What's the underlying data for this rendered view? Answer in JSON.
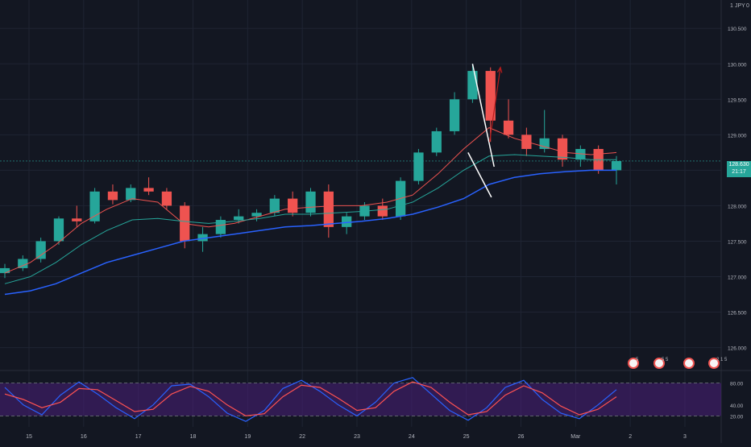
{
  "header": {
    "currency": "JPY",
    "scale_value": "1",
    "zero_label": "0"
  },
  "price_tag": {
    "price": "128.630",
    "countdown": "21:17",
    "color": "#26a69a"
  },
  "events": [
    {
      "label": "5",
      "date": "Mar 1"
    },
    {
      "label": "5 5",
      "date": "Mar 1"
    },
    {
      "label": "",
      "date": "Mar 2"
    },
    {
      "label": "2 1 5",
      "date": "Mar 3"
    }
  ],
  "colors": {
    "background": "#131722",
    "grid": "#1f2433",
    "up": "#26a69a",
    "down": "#ef5350",
    "ma_fast": "#ef5350",
    "ma_slow": "#26a69a",
    "ma_long": "#2962ff",
    "pattern": "#ffffff",
    "target_arrow": "#b71c1c",
    "stoch_k": "#2962ff",
    "stoch_d": "#ff5252",
    "stoch_band": "#4a1f7a"
  },
  "chart_data": [
    {
      "type": "candlestick",
      "title": "",
      "x_ticks": [
        "15",
        "16",
        "17",
        "18",
        "19",
        "22",
        "23",
        "24",
        "25",
        "26",
        "Mar",
        "2",
        "3"
      ],
      "y_ticks": [
        "126.000",
        "126.500",
        "127.000",
        "127.500",
        "128.000",
        "128.500",
        "129.000",
        "129.500",
        "130.000",
        "130.500"
      ],
      "ylim": [
        125.7,
        130.9
      ],
      "grid": true,
      "series": [
        {
          "name": "ma_fast",
          "values": [
            127.05,
            127.2,
            127.45,
            127.75,
            127.95,
            128.1,
            128.05,
            127.75,
            127.7,
            127.75,
            127.85,
            127.95,
            127.98,
            128.0,
            128.0,
            128.05,
            128.15,
            128.45,
            128.8,
            129.1,
            128.95,
            128.85,
            128.75,
            128.72,
            128.75
          ]
        },
        {
          "name": "ma_slow",
          "values": [
            126.9,
            127.0,
            127.2,
            127.45,
            127.65,
            127.8,
            127.82,
            127.78,
            127.75,
            127.78,
            127.82,
            127.88,
            127.88,
            127.9,
            127.92,
            127.95,
            128.05,
            128.25,
            128.5,
            128.7,
            128.72,
            128.7,
            128.68,
            128.65,
            128.65
          ]
        },
        {
          "name": "ma_long",
          "values": [
            126.75,
            126.8,
            126.9,
            127.05,
            127.2,
            127.3,
            127.4,
            127.5,
            127.55,
            127.6,
            127.65,
            127.7,
            127.72,
            127.75,
            127.78,
            127.82,
            127.88,
            127.98,
            128.1,
            128.3,
            128.4,
            128.45,
            128.48,
            128.5,
            128.5
          ]
        }
      ],
      "candles": [
        {
          "o": 127.05,
          "h": 127.18,
          "l": 126.98,
          "c": 127.12
        },
        {
          "o": 127.12,
          "h": 127.3,
          "l": 127.08,
          "c": 127.25
        },
        {
          "o": 127.25,
          "h": 127.55,
          "l": 127.2,
          "c": 127.5
        },
        {
          "o": 127.5,
          "h": 127.85,
          "l": 127.45,
          "c": 127.82
        },
        {
          "o": 127.82,
          "h": 128.0,
          "l": 127.7,
          "c": 127.78
        },
        {
          "o": 127.78,
          "h": 128.25,
          "l": 127.75,
          "c": 128.2
        },
        {
          "o": 128.2,
          "h": 128.3,
          "l": 128.02,
          "c": 128.08
        },
        {
          "o": 128.08,
          "h": 128.3,
          "l": 128.05,
          "c": 128.25
        },
        {
          "o": 128.25,
          "h": 128.4,
          "l": 128.15,
          "c": 128.2
        },
        {
          "o": 128.2,
          "h": 128.25,
          "l": 127.95,
          "c": 128.0
        },
        {
          "o": 128.0,
          "h": 128.05,
          "l": 127.4,
          "c": 127.5
        },
        {
          "o": 127.5,
          "h": 127.7,
          "l": 127.35,
          "c": 127.6
        },
        {
          "o": 127.6,
          "h": 127.85,
          "l": 127.55,
          "c": 127.8
        },
        {
          "o": 127.8,
          "h": 127.95,
          "l": 127.75,
          "c": 127.85
        },
        {
          "o": 127.85,
          "h": 127.95,
          "l": 127.78,
          "c": 127.9
        },
        {
          "o": 127.9,
          "h": 128.15,
          "l": 127.85,
          "c": 128.1
        },
        {
          "o": 128.1,
          "h": 128.2,
          "l": 127.85,
          "c": 127.9
        },
        {
          "o": 127.9,
          "h": 128.25,
          "l": 127.85,
          "c": 128.2
        },
        {
          "o": 128.2,
          "h": 128.3,
          "l": 127.55,
          "c": 127.7
        },
        {
          "o": 127.7,
          "h": 127.9,
          "l": 127.6,
          "c": 127.85
        },
        {
          "o": 127.85,
          "h": 128.05,
          "l": 127.8,
          "c": 128.0
        },
        {
          "o": 128.0,
          "h": 128.1,
          "l": 127.8,
          "c": 127.85
        },
        {
          "o": 127.85,
          "h": 128.4,
          "l": 127.8,
          "c": 128.35
        },
        {
          "o": 128.35,
          "h": 128.8,
          "l": 128.3,
          "c": 128.75
        },
        {
          "o": 128.75,
          "h": 129.1,
          "l": 128.7,
          "c": 129.05
        },
        {
          "o": 129.05,
          "h": 129.6,
          "l": 129.0,
          "c": 129.5
        },
        {
          "o": 129.5,
          "h": 130.0,
          "l": 129.45,
          "c": 129.9
        },
        {
          "o": 129.9,
          "h": 129.95,
          "l": 128.9,
          "c": 129.2
        },
        {
          "o": 129.2,
          "h": 129.5,
          "l": 128.95,
          "c": 129.0
        },
        {
          "o": 129.0,
          "h": 129.1,
          "l": 128.7,
          "c": 128.8
        },
        {
          "o": 128.8,
          "h": 129.35,
          "l": 128.75,
          "c": 128.95
        },
        {
          "o": 128.95,
          "h": 129.0,
          "l": 128.55,
          "c": 128.65
        },
        {
          "o": 128.65,
          "h": 128.85,
          "l": 128.55,
          "c": 128.8
        },
        {
          "o": 128.8,
          "h": 128.85,
          "l": 128.45,
          "c": 128.5
        },
        {
          "o": 128.5,
          "h": 128.7,
          "l": 128.3,
          "c": 128.63
        }
      ],
      "annotations": [
        {
          "type": "line",
          "points": [
            [
              26.0,
              130.0
            ],
            [
              27.2,
              128.55
            ]
          ]
        },
        {
          "type": "line",
          "points": [
            [
              25.75,
              128.75
            ],
            [
              27.05,
              128.12
            ]
          ]
        },
        {
          "type": "arrow",
          "points": [
            [
              26.95,
              128.9
            ],
            [
              27.55,
              129.95
            ]
          ]
        }
      ]
    },
    {
      "type": "line",
      "title": "",
      "y_ticks": [
        "20.00",
        "40.00",
        "80.00"
      ],
      "ylim": [
        0,
        100
      ],
      "band": [
        20,
        80
      ],
      "series": [
        {
          "name": "",
          "values": [
            72,
            40,
            22,
            58,
            82,
            60,
            35,
            15,
            40,
            75,
            78,
            55,
            25,
            10,
            30,
            70,
            85,
            65,
            40,
            20,
            45,
            80,
            90,
            60,
            30,
            12,
            35,
            72,
            85,
            50,
            25,
            15,
            40,
            68
          ]
        },
        {
          "name": "",
          "values": [
            60,
            50,
            35,
            45,
            70,
            68,
            48,
            28,
            32,
            60,
            74,
            65,
            40,
            20,
            24,
            55,
            76,
            72,
            52,
            30,
            35,
            65,
            82,
            72,
            45,
            22,
            28,
            58,
            75,
            62,
            38,
            22,
            32,
            55
          ]
        }
      ]
    }
  ]
}
